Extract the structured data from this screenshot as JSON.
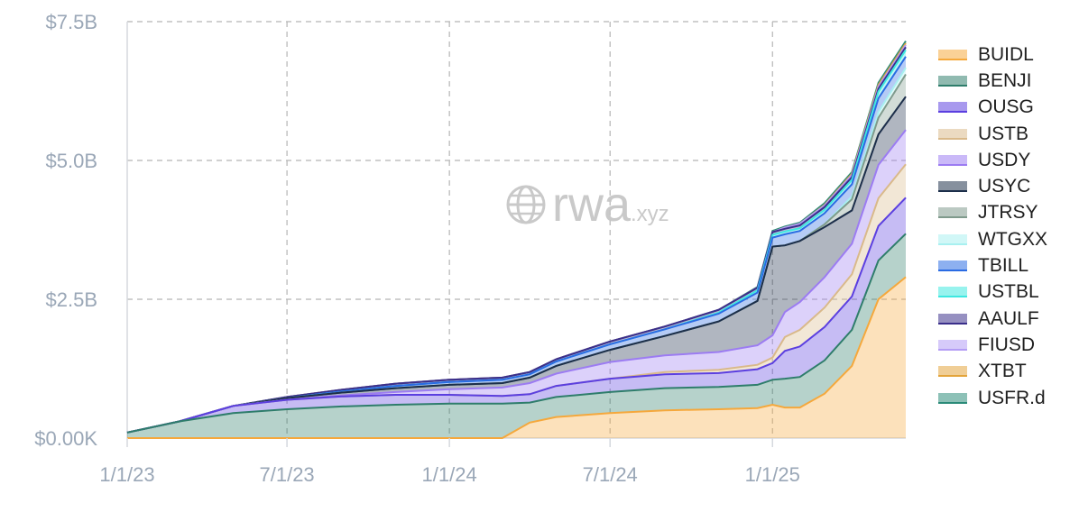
{
  "chart_data": {
    "type": "area",
    "stacked": true,
    "title": "",
    "xlabel": "",
    "ylabel": "",
    "ylim": [
      0,
      7.5
    ],
    "y_unit": "billions USD",
    "y_ticks": [
      {
        "value": 0,
        "label": "$0.00K"
      },
      {
        "value": 2.5,
        "label": "$2.5B"
      },
      {
        "value": 5.0,
        "label": "$5.0B"
      },
      {
        "value": 7.5,
        "label": "$7.5B"
      }
    ],
    "x_ticks": [
      "1/1/23",
      "7/1/23",
      "1/1/24",
      "7/1/24",
      "1/1/25"
    ],
    "x": [
      "2023-01-01",
      "2023-03-01",
      "2023-05-01",
      "2023-07-01",
      "2023-09-01",
      "2023-11-01",
      "2024-01-01",
      "2024-03-01",
      "2024-04-01",
      "2024-05-01",
      "2024-07-01",
      "2024-09-01",
      "2024-11-01",
      "2024-12-15",
      "2025-01-01",
      "2025-01-15",
      "2025-02-01",
      "2025-03-01",
      "2025-04-01",
      "2025-05-01",
      "2025-06-01"
    ],
    "grid": true,
    "legend_position": "right",
    "watermark": {
      "main": "rwa",
      "sub": ".xyz"
    },
    "series": [
      {
        "name": "BUIDL",
        "color": "#f5a83c",
        "values": [
          0,
          0,
          0,
          0,
          0,
          0,
          0,
          0,
          0.28,
          0.38,
          0.45,
          0.5,
          0.52,
          0.54,
          0.6,
          0.55,
          0.55,
          0.8,
          1.3,
          2.5,
          2.9
        ]
      },
      {
        "name": "BENJI",
        "color": "#2e7d6b",
        "values": [
          0.1,
          0.3,
          0.45,
          0.52,
          0.57,
          0.6,
          0.62,
          0.62,
          0.36,
          0.36,
          0.38,
          0.4,
          0.4,
          0.42,
          0.45,
          0.52,
          0.55,
          0.6,
          0.65,
          0.7,
          0.78
        ]
      },
      {
        "name": "OUSG",
        "color": "#5b3fe0",
        "values": [
          0,
          0,
          0.13,
          0.17,
          0.18,
          0.18,
          0.16,
          0.14,
          0.15,
          0.2,
          0.24,
          0.25,
          0.25,
          0.28,
          0.3,
          0.5,
          0.55,
          0.6,
          0.6,
          0.62,
          0.65
        ]
      },
      {
        "name": "USTB",
        "color": "#d9b98a",
        "values": [
          0,
          0,
          0,
          0,
          0,
          0,
          0,
          0,
          0,
          0,
          0,
          0.04,
          0.06,
          0.08,
          0.1,
          0.25,
          0.3,
          0.35,
          0.4,
          0.5,
          0.6
        ]
      },
      {
        "name": "USDY",
        "color": "#9c7cf2",
        "values": [
          0,
          0,
          0,
          0,
          0.02,
          0.05,
          0.1,
          0.15,
          0.2,
          0.22,
          0.3,
          0.3,
          0.32,
          0.35,
          0.4,
          0.45,
          0.5,
          0.55,
          0.55,
          0.6,
          0.62
        ]
      },
      {
        "name": "USYC",
        "color": "#1c2e4a",
        "values": [
          0,
          0,
          0,
          0.03,
          0.05,
          0.07,
          0.08,
          0.08,
          0.1,
          0.14,
          0.22,
          0.35,
          0.55,
          0.8,
          1.6,
          1.2,
          1.1,
          0.9,
          0.6,
          0.55,
          0.6
        ]
      },
      {
        "name": "JTRSY",
        "color": "#7f9a8c",
        "values": [
          0,
          0,
          0,
          0,
          0,
          0,
          0,
          0,
          0,
          0,
          0,
          0,
          0,
          0,
          0,
          0,
          0,
          0.05,
          0.2,
          0.3,
          0.4
        ]
      },
      {
        "name": "WTGXX",
        "color": "#a8f0f0",
        "values": [
          0,
          0,
          0,
          0,
          0,
          0,
          0,
          0,
          0,
          0,
          0,
          0,
          0,
          0,
          0,
          0,
          0,
          0,
          0.05,
          0.1,
          0.12
        ]
      },
      {
        "name": "TBILL",
        "color": "#2a6be3",
        "values": [
          0,
          0,
          0,
          0,
          0.02,
          0.04,
          0.05,
          0.06,
          0.06,
          0.08,
          0.1,
          0.12,
          0.14,
          0.15,
          0.16,
          0.2,
          0.18,
          0.2,
          0.22,
          0.25,
          0.2
        ]
      },
      {
        "name": "USTBL",
        "color": "#3ee8e0",
        "values": [
          0,
          0,
          0,
          0,
          0,
          0,
          0,
          0,
          0,
          0,
          0,
          0,
          0.02,
          0.04,
          0.05,
          0.05,
          0.05,
          0.06,
          0.08,
          0.12,
          0.12
        ]
      },
      {
        "name": "AAULF",
        "color": "#3a2f8a",
        "values": [
          0,
          0,
          0,
          0.02,
          0.03,
          0.04,
          0.04,
          0.04,
          0.04,
          0.04,
          0.05,
          0.05,
          0.05,
          0.05,
          0.05,
          0.05,
          0.05,
          0.05,
          0.05,
          0.05,
          0.05
        ]
      },
      {
        "name": "FIUSD",
        "color": "#b39cf5",
        "values": [
          0,
          0,
          0,
          0,
          0,
          0,
          0,
          0,
          0,
          0,
          0,
          0,
          0,
          0,
          0,
          0.02,
          0.03,
          0.03,
          0.04,
          0.04,
          0.04
        ]
      },
      {
        "name": "XTBT",
        "color": "#e3a43a",
        "values": [
          0,
          0,
          0,
          0,
          0,
          0,
          0,
          0,
          0,
          0,
          0,
          0,
          0,
          0,
          0,
          0,
          0,
          0.01,
          0.02,
          0.03,
          0.03
        ]
      },
      {
        "name": "USFR.d",
        "color": "#2a8a78",
        "values": [
          0,
          0,
          0,
          0,
          0,
          0,
          0,
          0,
          0,
          0,
          0,
          0,
          0,
          0.01,
          0.02,
          0.02,
          0.02,
          0.03,
          0.03,
          0.04,
          0.04
        ]
      }
    ]
  }
}
